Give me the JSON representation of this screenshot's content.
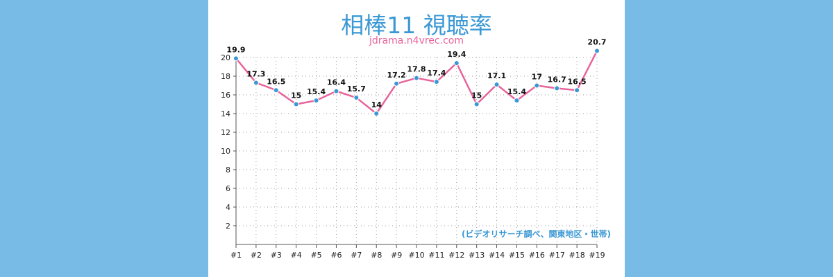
{
  "colors": {
    "background": "#78bbe6",
    "panel": "#ffffff",
    "title": "#3a98d4",
    "subtitle": "#e8649a",
    "line": "#e8649a",
    "point": "#3a98d4",
    "note": "#3a98d4"
  },
  "chart_data": {
    "type": "line",
    "title": "相棒11 視聴率",
    "subtitle": "jdrama.n4vrec.com",
    "note": "(ビデオリサーチ調べ、関東地区・世帯)",
    "categories": [
      "#1",
      "#2",
      "#3",
      "#4",
      "#5",
      "#6",
      "#7",
      "#8",
      "#9",
      "#10",
      "#11",
      "#12",
      "#13",
      "#14",
      "#15",
      "#16",
      "#17",
      "#18",
      "#19"
    ],
    "values": [
      19.9,
      17.3,
      16.5,
      15,
      15.4,
      16.4,
      15.7,
      14,
      17.2,
      17.8,
      17.4,
      19.4,
      15,
      17.1,
      15.4,
      17,
      16.7,
      16.5,
      20.7
    ],
    "data_labels": [
      "19.9",
      "17.3",
      "16.5",
      "15",
      "15.4",
      "16.4",
      "15.7",
      "14",
      "17.2",
      "17.8",
      "17.4",
      "19.4",
      "15",
      "17.1",
      "15.4",
      "17",
      "16.7",
      "16.5",
      "20.7"
    ],
    "y_ticks": [
      "2",
      "4",
      "6",
      "8",
      "10",
      "12",
      "14",
      "16",
      "18",
      "20"
    ],
    "ylim": [
      0,
      20
    ],
    "grid": true,
    "legend": false
  }
}
